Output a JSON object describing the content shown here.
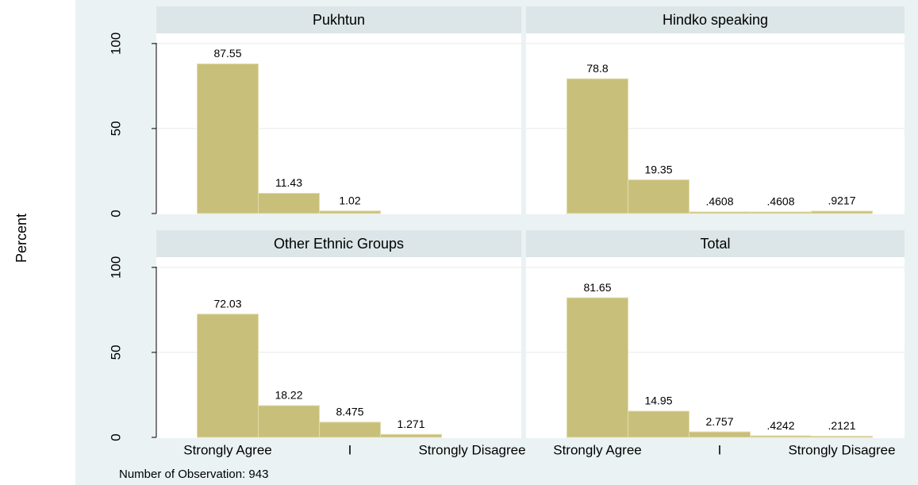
{
  "ylabel": "Percent",
  "note": "Number of Observation: 943",
  "chart_data": [
    {
      "type": "bar",
      "title": "Pukhtun",
      "categories": [
        "Strongly Agree",
        null,
        "I",
        null,
        "Strongly Disagree"
      ],
      "values": [
        87.55,
        11.43,
        1.02,
        null,
        null
      ],
      "color": "#c8bf7a",
      "ylim": [
        0,
        106
      ],
      "yticks": [
        0,
        50,
        100
      ],
      "grid": true
    },
    {
      "type": "bar",
      "title": "Hindko speaking",
      "categories": [
        "Strongly Agree",
        null,
        "I",
        null,
        "Strongly Disagree"
      ],
      "values": [
        78.8,
        19.35,
        0.4608,
        0.4608,
        0.9217
      ],
      "value_labels": [
        "78.8",
        "19.35",
        ".4608",
        ".4608",
        ".9217"
      ],
      "color": "#c8bf7a",
      "ylim": [
        0,
        106
      ],
      "yticks": [
        0,
        50,
        100
      ],
      "grid": true
    },
    {
      "type": "bar",
      "title": "Other Ethnic Groups",
      "categories": [
        "Strongly Agree",
        null,
        "I",
        null,
        "Strongly Disagree"
      ],
      "values": [
        72.03,
        18.22,
        8.475,
        1.271,
        null
      ],
      "color": "#c8bf7a",
      "ylim": [
        0,
        106
      ],
      "yticks": [
        0,
        50,
        100
      ],
      "grid": true
    },
    {
      "type": "bar",
      "title": "Total",
      "categories": [
        "Strongly Agree",
        null,
        "I",
        null,
        "Strongly Disagree"
      ],
      "values": [
        81.65,
        14.95,
        2.757,
        0.4242,
        0.2121
      ],
      "value_labels": [
        "81.65",
        "14.95",
        "2.757",
        ".4242",
        ".2121"
      ],
      "color": "#c8bf7a",
      "ylim": [
        0,
        106
      ],
      "yticks": [
        0,
        50,
        100
      ],
      "grid": true
    }
  ]
}
